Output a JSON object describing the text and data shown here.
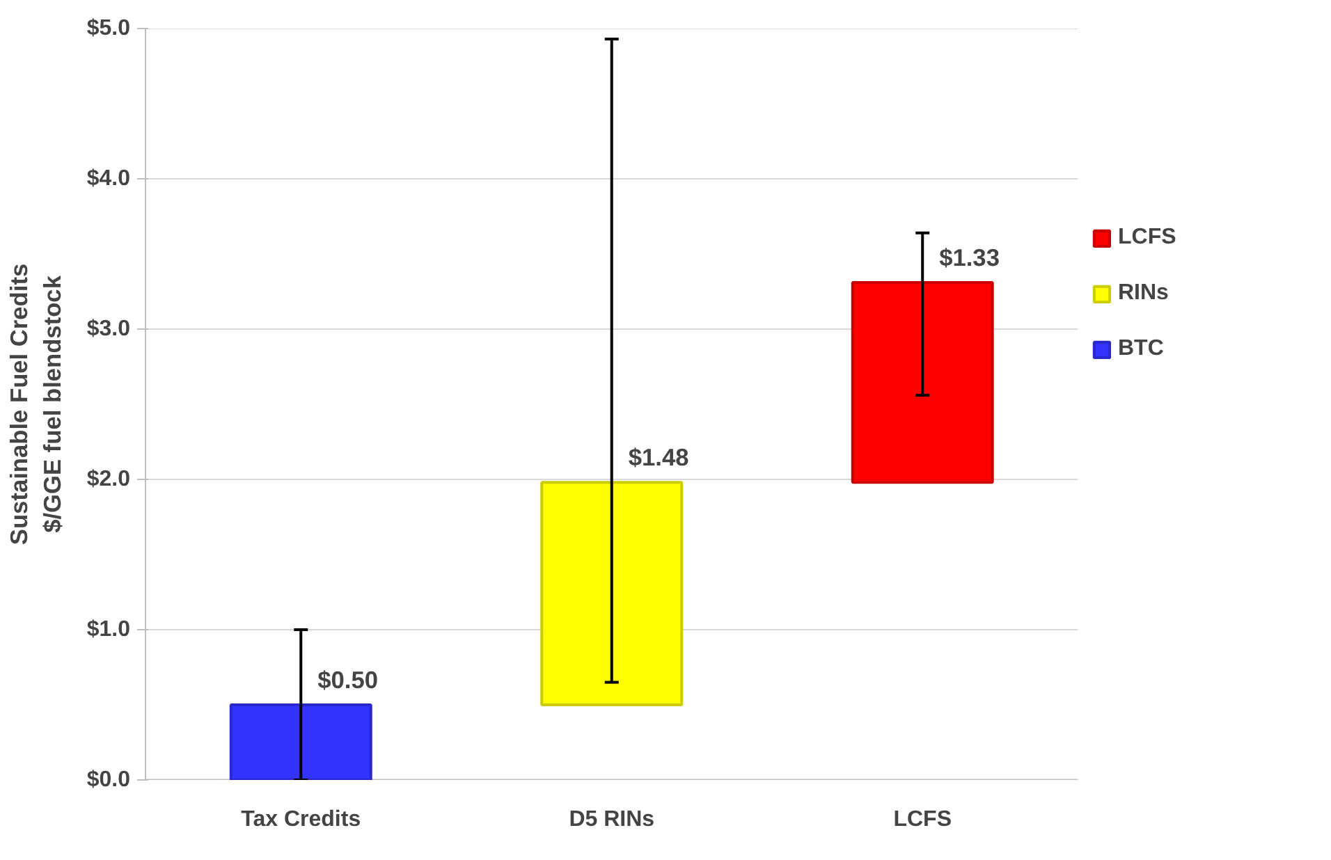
{
  "chart_data": {
    "type": "bar",
    "ylabel": "Sustainable Fuel Credits\n$/GGE fuel blendstock",
    "categories": [
      "Tax Credits",
      "D5 RINs",
      "LCFS"
    ],
    "series": [
      {
        "name": "LCFS",
        "color": "#ff0000",
        "base": [
          null,
          null,
          1.98
        ],
        "values": [
          null,
          null,
          1.33
        ],
        "errors": [
          null,
          null,
          [
            2.56,
            3.64
          ]
        ],
        "value_labels": [
          null,
          null,
          "$1.33"
        ]
      },
      {
        "name": "RINs",
        "color": "#ffff00",
        "base": [
          null,
          0.5,
          null
        ],
        "values": [
          null,
          1.48,
          null
        ],
        "errors": [
          null,
          [
            0.65,
            4.93
          ],
          null
        ],
        "value_labels": [
          null,
          "$1.48",
          null
        ]
      },
      {
        "name": "BTC",
        "color": "#3333ff",
        "base": [
          0,
          null,
          null
        ],
        "values": [
          0.5,
          null,
          null
        ],
        "errors": [
          [
            0,
            1.0
          ],
          null,
          null
        ],
        "value_labels": [
          "$0.50",
          null,
          null
        ]
      }
    ],
    "ylim": [
      0,
      5
    ],
    "yticks": [
      {
        "value": 0,
        "label": "$0.0"
      },
      {
        "value": 1,
        "label": "$1.0"
      },
      {
        "value": 2,
        "label": "$2.0"
      },
      {
        "value": 3,
        "label": "$3.0"
      },
      {
        "value": 4,
        "label": "$4.0"
      },
      {
        "value": 5,
        "label": "$5.0"
      }
    ],
    "grid": "y",
    "legend": "right"
  }
}
